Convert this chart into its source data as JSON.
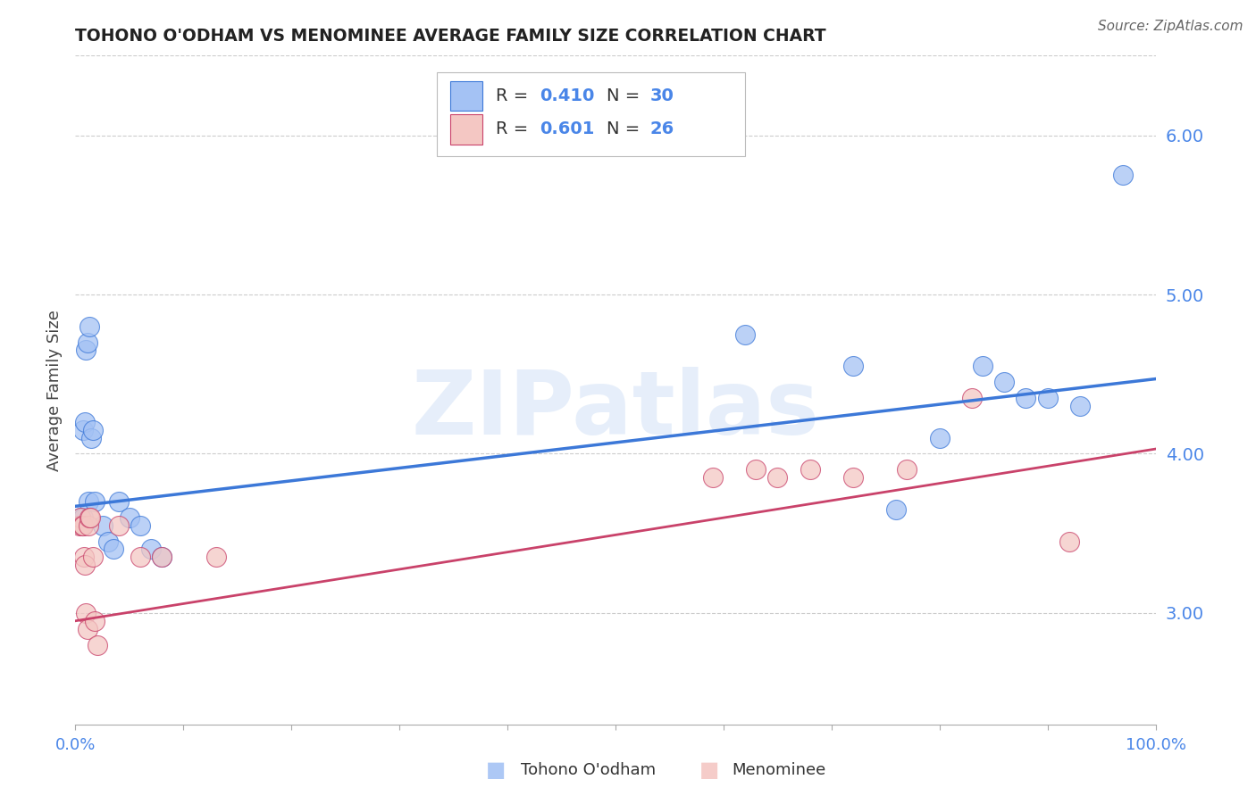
{
  "title": "TOHONO O'ODHAM VS MENOMINEE AVERAGE FAMILY SIZE CORRELATION CHART",
  "source": "Source: ZipAtlas.com",
  "ylabel": "Average Family Size",
  "xlim": [
    0,
    1
  ],
  "ylim": [
    2.3,
    6.5
  ],
  "yticks_right": [
    3.0,
    4.0,
    5.0,
    6.0
  ],
  "watermark_text": "ZIPatlas",
  "blue_label": "Tohono O'odham",
  "pink_label": "Menominee",
  "blue_R_val": "0.410",
  "blue_N_val": "30",
  "pink_R_val": "0.601",
  "pink_N_val": "26",
  "blue_fill": "#a4c2f4",
  "pink_fill": "#f4c7c3",
  "blue_line_color": "#3c78d8",
  "pink_line_color": "#c9426a",
  "legend_text_color": "#4a86e8",
  "grid_color": "#cccccc",
  "title_color": "#222222",
  "source_color": "#666666",
  "tohono_x": [
    0.005,
    0.006,
    0.007,
    0.007,
    0.009,
    0.01,
    0.011,
    0.012,
    0.013,
    0.015,
    0.016,
    0.018,
    0.025,
    0.03,
    0.035,
    0.04,
    0.05,
    0.06,
    0.07,
    0.08,
    0.62,
    0.72,
    0.76,
    0.8,
    0.84,
    0.86,
    0.88,
    0.9,
    0.93,
    0.97
  ],
  "tohono_y": [
    3.6,
    3.55,
    3.6,
    4.15,
    4.2,
    4.65,
    4.7,
    3.7,
    4.8,
    4.1,
    4.15,
    3.7,
    3.55,
    3.45,
    3.4,
    3.7,
    3.6,
    3.55,
    3.4,
    3.35,
    4.75,
    4.55,
    3.65,
    4.1,
    4.55,
    4.45,
    4.35,
    4.35,
    4.3,
    5.75
  ],
  "menominee_x": [
    0.004,
    0.005,
    0.006,
    0.007,
    0.008,
    0.009,
    0.01,
    0.011,
    0.012,
    0.013,
    0.014,
    0.016,
    0.018,
    0.02,
    0.04,
    0.06,
    0.08,
    0.13,
    0.59,
    0.63,
    0.65,
    0.68,
    0.72,
    0.77,
    0.83,
    0.92
  ],
  "menominee_y": [
    3.55,
    3.6,
    3.55,
    3.55,
    3.35,
    3.3,
    3.0,
    2.9,
    3.55,
    3.6,
    3.6,
    3.35,
    2.95,
    2.8,
    3.55,
    3.35,
    3.35,
    3.35,
    3.85,
    3.9,
    3.85,
    3.9,
    3.85,
    3.9,
    4.35,
    3.45
  ],
  "blue_trend_x": [
    0.0,
    1.0
  ],
  "blue_trend_y": [
    3.67,
    4.47
  ],
  "pink_trend_x": [
    0.0,
    1.0
  ],
  "pink_trend_y": [
    2.95,
    4.03
  ]
}
